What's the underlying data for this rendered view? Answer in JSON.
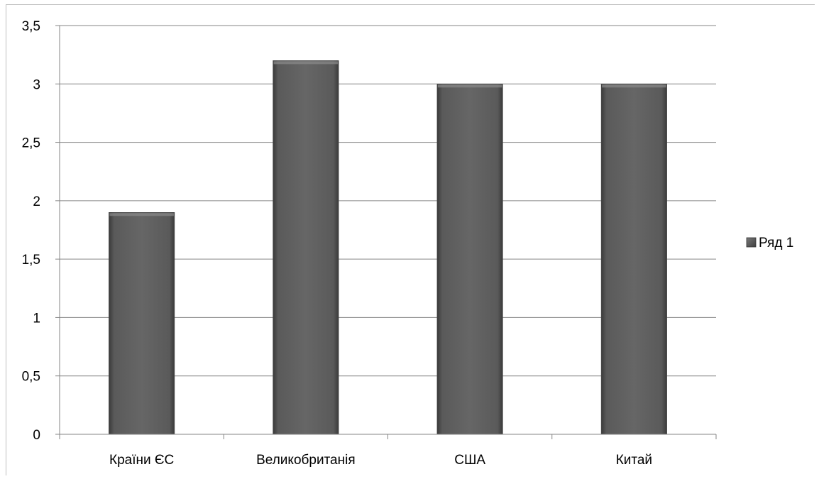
{
  "chart_data": {
    "type": "bar",
    "categories": [
      "Країни ЄС",
      "Великобританія",
      "США",
      "Китай"
    ],
    "series": [
      {
        "name": "Ряд 1",
        "values": [
          1.9,
          3.2,
          3.0,
          3.0
        ]
      }
    ],
    "title": "",
    "xlabel": "",
    "ylabel": "",
    "ylim": [
      0,
      3.5
    ],
    "yticks": [
      "0",
      "0,5",
      "1",
      "1,5",
      "2",
      "2,5",
      "3",
      "3,5"
    ],
    "grid": true,
    "legend_position": "right",
    "bar_color": "#5f5f5f"
  }
}
